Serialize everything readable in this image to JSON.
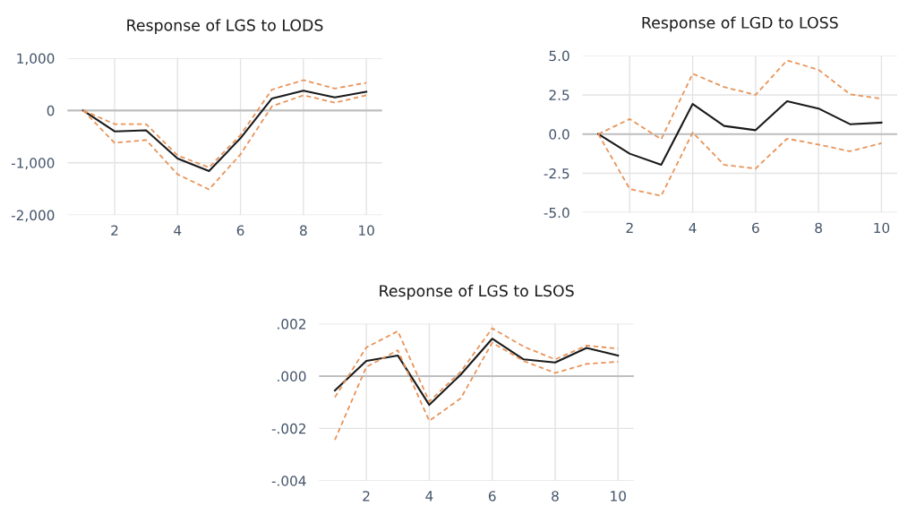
{
  "chart_data": [
    {
      "type": "line",
      "title": "Response of LGS to LODS",
      "x": [
        1,
        2,
        3,
        4,
        5,
        6,
        7,
        8,
        9,
        10
      ],
      "xlim": [
        0.5,
        10.5
      ],
      "xticks": [
        2,
        4,
        6,
        8,
        10
      ],
      "ylim": [
        -2000,
        1000
      ],
      "yticks": [
        {
          "value": -2000,
          "label": "-2,000"
        },
        {
          "value": -1000,
          "label": "-1,000"
        },
        0,
        {
          "value": 1000,
          "label": "1,000"
        }
      ],
      "grid": true,
      "ref_lines": [
        {
          "axis": "y",
          "value": 0,
          "color": "#bfbfbf"
        }
      ],
      "series": [
        {
          "color": "#1a1a1a",
          "line_style": "solid",
          "values": [
            0,
            -400,
            -380,
            -920,
            -1160,
            -530,
            230,
            380,
            250,
            360
          ]
        },
        {
          "color": "#e8945a",
          "line_style": "dashed",
          "values": [
            0,
            -260,
            -260,
            -860,
            -1090,
            -470,
            400,
            580,
            420,
            530
          ]
        },
        {
          "color": "#e8945a",
          "line_style": "dashed",
          "values": [
            0,
            -620,
            -565,
            -1220,
            -1510,
            -840,
            80,
            290,
            150,
            290
          ]
        }
      ]
    },
    {
      "type": "line",
      "title": "Response of LGD to LOSS",
      "x": [
        1,
        2,
        3,
        4,
        5,
        6,
        7,
        8,
        9,
        10
      ],
      "xlim": [
        0.5,
        10.5
      ],
      "xticks": [
        2,
        4,
        6,
        8,
        10
      ],
      "ylim": [
        -5,
        5
      ],
      "yticks": [
        {
          "value": -5,
          "label": "-5.0"
        },
        {
          "value": -2.5,
          "label": "-2.5"
        },
        {
          "value": 0,
          "label": "0.0"
        },
        {
          "value": 2.5,
          "label": "2.5"
        },
        {
          "value": 5,
          "label": "5.0"
        }
      ],
      "grid": true,
      "ref_lines": [
        {
          "axis": "y",
          "value": 0,
          "color": "#bfbfbf"
        }
      ],
      "series": [
        {
          "color": "#1a1a1a",
          "line_style": "solid",
          "values": [
            0,
            -1.25,
            -1.96,
            1.92,
            0.52,
            0.25,
            2.1,
            1.63,
            0.63,
            0.73
          ]
        },
        {
          "color": "#e8945a",
          "line_style": "dashed",
          "values": [
            0,
            0.96,
            -0.33,
            3.85,
            3.0,
            2.5,
            4.7,
            4.1,
            2.54,
            2.25
          ]
        },
        {
          "color": "#e8945a",
          "line_style": "dashed",
          "values": [
            0,
            -3.5,
            -3.94,
            0.1,
            -1.96,
            -2.2,
            -0.29,
            -0.67,
            -1.1,
            -0.58
          ]
        }
      ]
    },
    {
      "type": "line",
      "title": "Response of LGS to LSOS",
      "x": [
        1,
        2,
        3,
        4,
        5,
        6,
        7,
        8,
        9,
        10
      ],
      "xlim": [
        0.5,
        10.5
      ],
      "xticks": [
        2,
        4,
        6,
        8,
        10
      ],
      "ylim": [
        -0.004,
        0.002
      ],
      "yticks": [
        {
          "value": -0.004,
          "label": "-.004"
        },
        {
          "value": -0.002,
          "label": "-.002"
        },
        {
          "value": 0,
          "label": ".000"
        },
        {
          "value": 0.002,
          "label": ".002"
        }
      ],
      "grid": true,
      "ref_lines": [
        {
          "axis": "y",
          "value": 0,
          "color": "#bfbfbf"
        }
      ],
      "series": [
        {
          "color": "#1a1a1a",
          "line_style": "solid",
          "values": [
            -0.00055,
            0.00058,
            0.00079,
            -0.0011,
            6e-05,
            0.00143,
            0.00064,
            0.00052,
            0.00108,
            0.00079
          ]
        },
        {
          "color": "#e8945a",
          "line_style": "dashed",
          "values": [
            -0.00081,
            0.0011,
            0.00172,
            -0.00097,
            0.00017,
            0.00183,
            0.00113,
            0.00064,
            0.00117,
            0.00105
          ]
        },
        {
          "color": "#e8945a",
          "line_style": "dashed",
          "values": [
            -0.00244,
            0.00035,
            0.00099,
            -0.00171,
            -0.00085,
            0.00128,
            0.00058,
            0.00012,
            0.00047,
            0.00055
          ]
        }
      ]
    }
  ]
}
